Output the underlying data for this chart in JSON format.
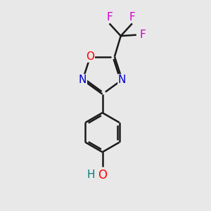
{
  "background_color": "#e8e8e8",
  "bond_color": "#1a1a1a",
  "O_color": "#ff0000",
  "N_color": "#0000cc",
  "F_color": "#cc00cc",
  "H_color": "#008080",
  "line_width": 1.8,
  "font_size": 11,
  "fig_size": [
    3.0,
    3.0
  ],
  "dpi": 100,
  "xlim": [
    0,
    10
  ],
  "ylim": [
    0,
    10
  ]
}
